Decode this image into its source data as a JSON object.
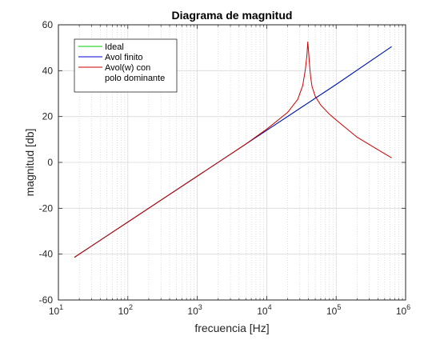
{
  "chart_data": {
    "type": "line",
    "title": "Diagrama de magnitud",
    "xlabel": "frecuencia [Hz]",
    "ylabel": "magnitud [db]",
    "xscale": "log",
    "xlim": [
      10,
      1000000
    ],
    "ylim": [
      -60,
      60
    ],
    "grid": true,
    "minor_grid": true,
    "legend_position": "top-left",
    "yticks": [
      -60,
      -40,
      -20,
      0,
      20,
      40,
      60
    ],
    "xticks": [
      {
        "value": 10,
        "base": "10",
        "exp": "1"
      },
      {
        "value": 100,
        "base": "10",
        "exp": "2"
      },
      {
        "value": 1000,
        "base": "10",
        "exp": "3"
      },
      {
        "value": 10000,
        "base": "10",
        "exp": "4"
      },
      {
        "value": 100000,
        "base": "10",
        "exp": "5"
      },
      {
        "value": 1000000,
        "base": "10",
        "exp": "6"
      }
    ],
    "series": [
      {
        "name": "Ideal",
        "color": "#00cc00",
        "x": [
          17,
          100,
          1000,
          10000,
          100000,
          630000
        ],
        "y": [
          -41.4,
          -26.0,
          -6.0,
          14.0,
          34.0,
          50.5
        ]
      },
      {
        "name": "Avol finito",
        "color": "#0000cc",
        "x": [
          17,
          100,
          1000,
          10000,
          100000,
          630000
        ],
        "y": [
          -41.4,
          -26.0,
          -6.0,
          14.0,
          34.0,
          50.5
        ]
      },
      {
        "name": "Avol(w) con\npolo dominante",
        "color": "#cc0000",
        "x": [
          17,
          100,
          1000,
          5000,
          10000,
          20000,
          28000,
          33000,
          36000,
          38000,
          39000,
          40000,
          41500,
          43000,
          45000,
          50000,
          60000,
          80000,
          100000,
          200000,
          400000,
          630000
        ],
        "y": [
          -41.4,
          -26.0,
          -6.0,
          8.0,
          14.5,
          21.8,
          27.5,
          33.5,
          40.5,
          47.0,
          52.5,
          48.5,
          42.0,
          37.0,
          33.0,
          28.8,
          25.0,
          21.0,
          18.5,
          11.0,
          5.5,
          2.0
        ]
      }
    ]
  }
}
